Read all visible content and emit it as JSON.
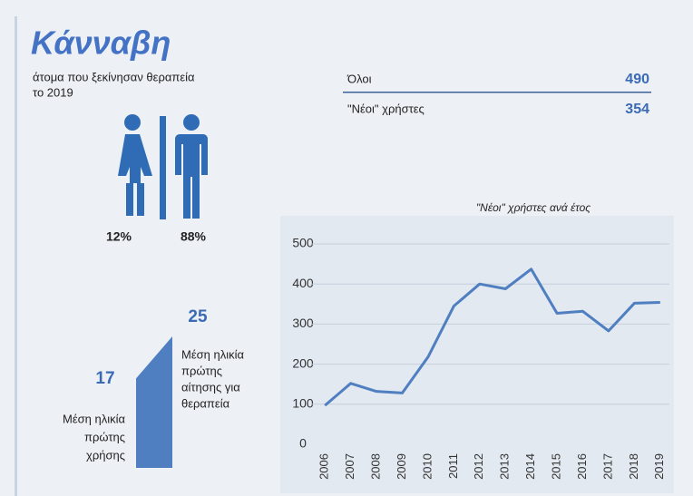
{
  "title": "Κάνναβη",
  "subtitle": [
    "άτομα που ξεκίνησαν θεραπεία",
    "το 2019"
  ],
  "gender": {
    "values": [
      12,
      88
    ],
    "value_labels": [
      "12%",
      "88%"
    ]
  },
  "table": {
    "rows": [
      [
        "Όλοι",
        "490"
      ],
      [
        "\"Νέοι\" χρήστες",
        "354"
      ]
    ]
  },
  "age": {
    "first_use": {
      "value": 17,
      "label": [
        "Μέση ηλικία",
        "πρώτης",
        "χρήσης"
      ]
    },
    "first_treatment": {
      "value": 25,
      "label": [
        "Μέση ηλικία",
        "πρώτης",
        "αίτησης για",
        "θεραπεία"
      ]
    }
  },
  "chart_data": {
    "type": "line",
    "title": "\"Νέοι\" χρήστες ανά έτος",
    "categories": [
      "2006",
      "2007",
      "2008",
      "2009",
      "2010",
      "2011",
      "2012",
      "2013",
      "2014",
      "2015",
      "2016",
      "2017",
      "2018",
      "2019"
    ],
    "values": [
      97,
      152,
      132,
      128,
      218,
      345,
      400,
      388,
      437,
      327,
      332,
      283,
      352,
      354
    ],
    "color": "#4f7fc0",
    "ylim": [
      0,
      500
    ],
    "yticks": [
      0,
      100,
      200,
      300,
      400,
      500
    ],
    "grid": true
  }
}
